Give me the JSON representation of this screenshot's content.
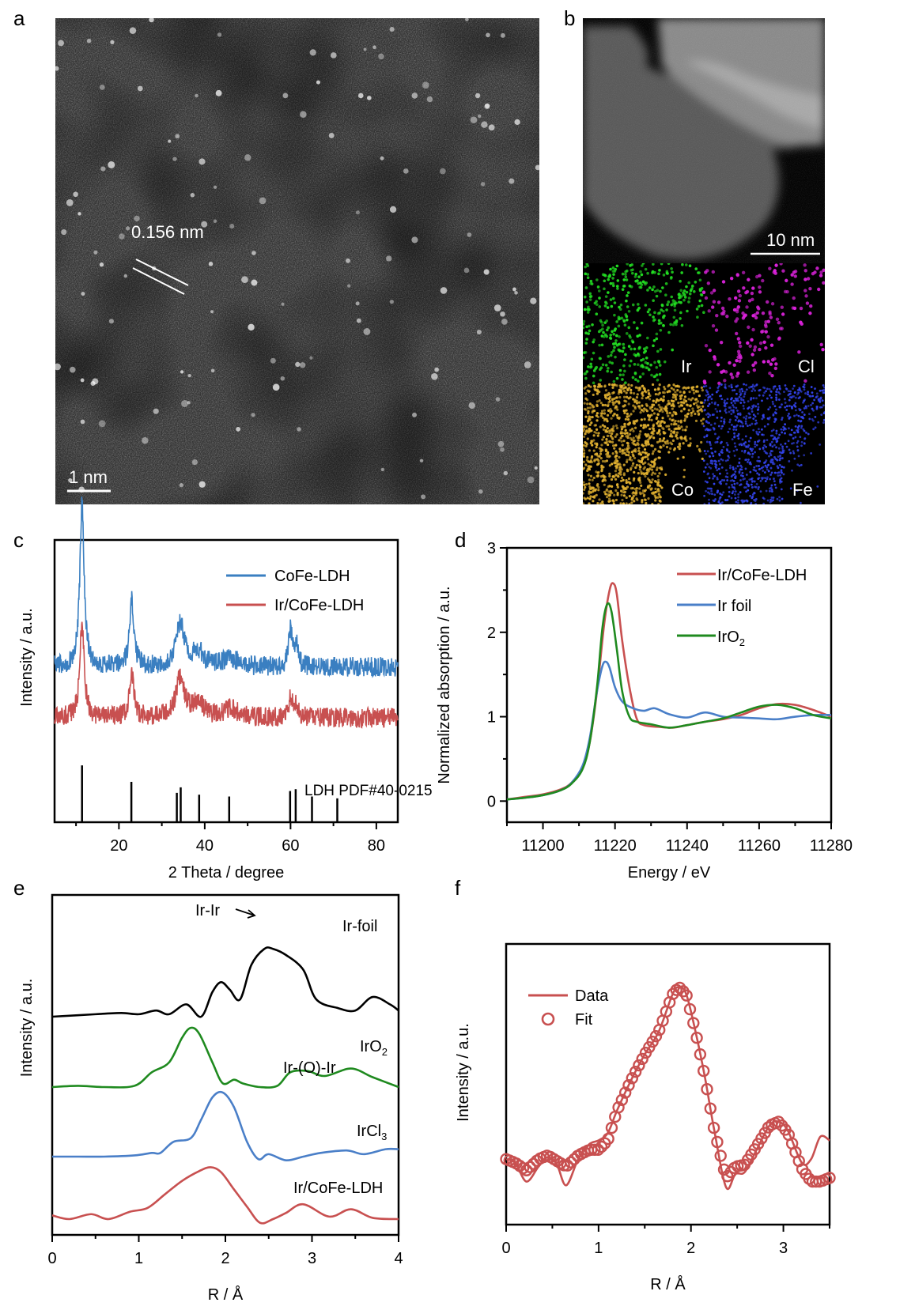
{
  "panels": {
    "a": {
      "label": "a",
      "lattice_annotation": "0.156 nm",
      "scale_bar": "1 nm"
    },
    "b": {
      "label": "b",
      "scale_bar": "10 nm",
      "maps": [
        {
          "element": "Ir",
          "color": "#22dd22"
        },
        {
          "element": "Cl",
          "color": "#dd22dd"
        },
        {
          "element": "Co",
          "color": "#e0b030"
        },
        {
          "element": "Fe",
          "color": "#3344ee"
        }
      ]
    },
    "c": {
      "label": "c"
    },
    "d": {
      "label": "d"
    },
    "e": {
      "label": "e"
    },
    "f": {
      "label": "f"
    }
  },
  "chart_data": [
    {
      "id": "c",
      "type": "line",
      "title": "",
      "xlabel": "2 Theta / degree",
      "ylabel": "Intensity / a.u.",
      "xlim": [
        5,
        85
      ],
      "xticks": [
        20,
        40,
        60,
        80
      ],
      "yticks": [],
      "legend": {
        "placement": "top-right",
        "entries": [
          "CoFe-LDH",
          "Ir/CoFe-LDH"
        ]
      },
      "series": [
        {
          "name": "CoFe-LDH",
          "color": "#3a7fc1",
          "baseline": 0.55,
          "noise": 0.035,
          "peaks": [
            [
              11.4,
              0.58,
              0.6
            ],
            [
              23.0,
              0.23,
              0.6
            ],
            [
              34.3,
              0.15,
              1.2
            ],
            [
              38.5,
              0.05,
              1.5
            ],
            [
              46,
              0.03,
              2
            ],
            [
              60.0,
              0.13,
              0.5
            ],
            [
              61.3,
              0.08,
              0.5
            ]
          ]
        },
        {
          "name": "Ir/CoFe-LDH",
          "color": "#c85050",
          "baseline": 0.37,
          "noise": 0.035,
          "peaks": [
            [
              11.4,
              0.34,
              0.6
            ],
            [
              23.0,
              0.15,
              0.6
            ],
            [
              34.3,
              0.14,
              1.2
            ],
            [
              38.5,
              0.05,
              1.5
            ],
            [
              46,
              0.03,
              2
            ],
            [
              60.0,
              0.07,
              0.5
            ],
            [
              61.3,
              0.05,
              0.5
            ]
          ]
        }
      ],
      "reference": {
        "label": "LDH PDF#40-0215",
        "positions": [
          11.4,
          22.9,
          33.5,
          34.4,
          38.7,
          45.7,
          59.9,
          61.2,
          65.0,
          70.9
        ],
        "heights": [
          0.31,
          0.22,
          0.16,
          0.19,
          0.15,
          0.14,
          0.17,
          0.18,
          0.14,
          0.13
        ]
      }
    },
    {
      "id": "d",
      "type": "line",
      "title": "",
      "xlabel": "Energy / eV",
      "ylabel": "Normalized absorption / a.u.",
      "xlim": [
        11190,
        11280
      ],
      "ylim": [
        -0.25,
        3
      ],
      "xticks": [
        11200,
        11220,
        11240,
        11260,
        11280
      ],
      "yticks": [
        0,
        1,
        2,
        3
      ],
      "legend": {
        "placement": "top-right",
        "entries": [
          "Ir/CoFe-LDH",
          "Ir foil",
          "IrO2"
        ]
      },
      "series": [
        {
          "name": "Ir/CoFe-LDH",
          "color": "#c85050",
          "x": [
            11190,
            11195,
            11200,
            11205,
            11208,
            11211,
            11213,
            11215,
            11217,
            11218.5,
            11219.5,
            11220.5,
            11222,
            11224,
            11226,
            11228,
            11232,
            11236,
            11240,
            11245,
            11250,
            11255,
            11260,
            11265,
            11270,
            11275,
            11280
          ],
          "y": [
            0.02,
            0.05,
            0.08,
            0.14,
            0.22,
            0.4,
            0.7,
            1.3,
            2.1,
            2.5,
            2.58,
            2.45,
            1.9,
            1.35,
            0.98,
            0.9,
            0.88,
            0.87,
            0.9,
            0.94,
            0.97,
            1.02,
            1.1,
            1.15,
            1.14,
            1.08,
            1.0
          ]
        },
        {
          "name": "Ir foil",
          "color": "#4a7fc8",
          "x": [
            11190,
            11195,
            11200,
            11205,
            11208,
            11211,
            11213,
            11215,
            11216.5,
            11217.5,
            11218.5,
            11220,
            11222,
            11225,
            11228,
            11231,
            11235,
            11240,
            11245,
            11250,
            11255,
            11260,
            11265,
            11270,
            11275,
            11280
          ],
          "y": [
            0.02,
            0.04,
            0.07,
            0.13,
            0.22,
            0.42,
            0.75,
            1.3,
            1.6,
            1.65,
            1.58,
            1.35,
            1.18,
            1.1,
            1.07,
            1.1,
            1.03,
            0.99,
            1.05,
            1.0,
            0.99,
            0.98,
            0.97,
            1.0,
            1.02,
            1.02
          ]
        },
        {
          "name": "IrO2",
          "color": "#1f8a1f",
          "x": [
            11190,
            11195,
            11200,
            11205,
            11208,
            11211,
            11213,
            11215,
            11216.5,
            11217.8,
            11219,
            11220.5,
            11222,
            11224,
            11226,
            11230,
            11235,
            11240,
            11245,
            11250,
            11255,
            11260,
            11265,
            11270,
            11275,
            11280
          ],
          "y": [
            0.02,
            0.04,
            0.07,
            0.13,
            0.21,
            0.38,
            0.7,
            1.35,
            2.05,
            2.33,
            2.25,
            1.8,
            1.3,
            1.0,
            0.94,
            0.91,
            0.87,
            0.9,
            0.94,
            0.98,
            1.05,
            1.12,
            1.14,
            1.1,
            1.02,
            0.98
          ]
        }
      ]
    },
    {
      "id": "e",
      "type": "line",
      "title": "",
      "xlabel": "R / Å",
      "ylabel": "Intensity / a.u.",
      "xlim": [
        0,
        4
      ],
      "xticks": [
        0,
        1,
        2,
        3,
        4
      ],
      "yticks": [],
      "annotations": [
        {
          "text": "Ir-Ir",
          "arrow": true
        },
        {
          "text": "Ir-(O)-Ir"
        }
      ],
      "series": [
        {
          "name": "Ir-foil",
          "label": "Ir-foil",
          "color": "#000000",
          "x": [
            0,
            0.5,
            0.8,
            1.0,
            1.2,
            1.35,
            1.55,
            1.72,
            1.85,
            1.95,
            2.05,
            2.17,
            2.3,
            2.45,
            2.55,
            2.7,
            2.9,
            3.05,
            3.3,
            3.5,
            3.7,
            3.9,
            4.0
          ],
          "y": [
            0.0,
            0.02,
            0.03,
            0.02,
            0.05,
            0.02,
            0.1,
            0.0,
            0.2,
            0.28,
            0.22,
            0.14,
            0.42,
            0.55,
            0.55,
            0.5,
            0.38,
            0.14,
            0.07,
            0.05,
            0.16,
            0.1,
            0.05
          ]
        },
        {
          "name": "IrO2",
          "label": "IrO2",
          "color": "#1f8a1f",
          "x": [
            0,
            0.3,
            0.6,
            0.95,
            1.15,
            1.35,
            1.5,
            1.6,
            1.7,
            1.85,
            1.97,
            2.1,
            2.2,
            2.4,
            2.6,
            2.75,
            2.95,
            3.15,
            3.45,
            3.7,
            4.0
          ],
          "y": [
            0.0,
            0.01,
            0.0,
            0.01,
            0.12,
            0.2,
            0.4,
            0.48,
            0.43,
            0.2,
            0.03,
            0.06,
            0.03,
            0.0,
            0.01,
            0.12,
            0.13,
            0.09,
            0.15,
            0.08,
            0.0
          ]
        },
        {
          "name": "IrCl3",
          "label": "IrCl3",
          "color": "#4a7fc8",
          "x": [
            0,
            0.3,
            0.6,
            0.95,
            1.15,
            1.25,
            1.4,
            1.6,
            1.72,
            1.85,
            1.97,
            2.1,
            2.25,
            2.38,
            2.5,
            2.7,
            2.9,
            3.1,
            3.4,
            3.6,
            3.85,
            4.0
          ],
          "y": [
            0.0,
            0.0,
            0.0,
            0.01,
            0.03,
            0.03,
            0.12,
            0.15,
            0.3,
            0.48,
            0.52,
            0.4,
            0.12,
            -0.02,
            0.02,
            -0.03,
            0.0,
            0.03,
            0.05,
            0.02,
            0.06,
            0.06
          ]
        },
        {
          "name": "Ir/CoFe-LDH",
          "label": "Ir/CoFe-LDH",
          "color": "#c85050",
          "x": [
            0,
            0.2,
            0.45,
            0.65,
            0.9,
            1.1,
            1.3,
            1.5,
            1.7,
            1.83,
            1.95,
            2.1,
            2.25,
            2.4,
            2.55,
            2.7,
            2.9,
            3.2,
            3.45,
            3.7,
            4.0
          ],
          "y": [
            0.03,
            0.0,
            0.04,
            0.0,
            0.06,
            0.09,
            0.2,
            0.31,
            0.39,
            0.42,
            0.38,
            0.24,
            0.1,
            -0.03,
            0.0,
            0.05,
            0.12,
            0.02,
            0.08,
            0.01,
            0.0
          ]
        }
      ]
    },
    {
      "id": "f",
      "type": "line",
      "title": "",
      "xlabel": "R / Å",
      "ylabel": "Intensity / a.u.",
      "xlim": [
        0,
        3.5
      ],
      "xticks": [
        0,
        1,
        2,
        3
      ],
      "yticks": [],
      "legend": {
        "placement": "top-left",
        "entries": [
          "Data",
          "Fit"
        ]
      },
      "series": [
        {
          "name": "Data",
          "style": "line",
          "color": "#c85050",
          "x": [
            0,
            0.1,
            0.22,
            0.35,
            0.45,
            0.55,
            0.65,
            0.78,
            0.9,
            1.0,
            1.1,
            1.2,
            1.35,
            1.5,
            1.65,
            1.8,
            1.87,
            1.95,
            2.05,
            2.15,
            2.25,
            2.38,
            2.48,
            2.58,
            2.7,
            2.85,
            2.95,
            3.05,
            3.2,
            3.3,
            3.4,
            3.5
          ],
          "y": [
            0.3,
            0.28,
            0.18,
            0.26,
            0.31,
            0.27,
            0.16,
            0.3,
            0.38,
            0.4,
            0.44,
            0.56,
            0.72,
            0.86,
            0.98,
            1.18,
            1.22,
            1.18,
            0.98,
            0.74,
            0.46,
            0.15,
            0.22,
            0.23,
            0.34,
            0.48,
            0.5,
            0.45,
            0.28,
            0.3,
            0.42,
            0.4
          ]
        },
        {
          "name": "Fit",
          "style": "circles",
          "color": "#c85050",
          "x": [
            0,
            0.1,
            0.22,
            0.35,
            0.45,
            0.55,
            0.65,
            0.78,
            0.9,
            1.0,
            1.1,
            1.2,
            1.35,
            1.5,
            1.65,
            1.8,
            1.87,
            1.95,
            2.05,
            2.15,
            2.25,
            2.38,
            2.48,
            2.58,
            2.7,
            2.85,
            2.95,
            3.05,
            3.2,
            3.3,
            3.4,
            3.5
          ],
          "y": [
            0.3,
            0.28,
            0.24,
            0.3,
            0.32,
            0.29,
            0.26,
            0.32,
            0.35,
            0.35,
            0.4,
            0.56,
            0.72,
            0.86,
            0.98,
            1.18,
            1.22,
            1.18,
            0.98,
            0.74,
            0.46,
            0.2,
            0.26,
            0.27,
            0.36,
            0.48,
            0.5,
            0.44,
            0.25,
            0.18,
            0.18,
            0.2
          ]
        }
      ]
    }
  ]
}
